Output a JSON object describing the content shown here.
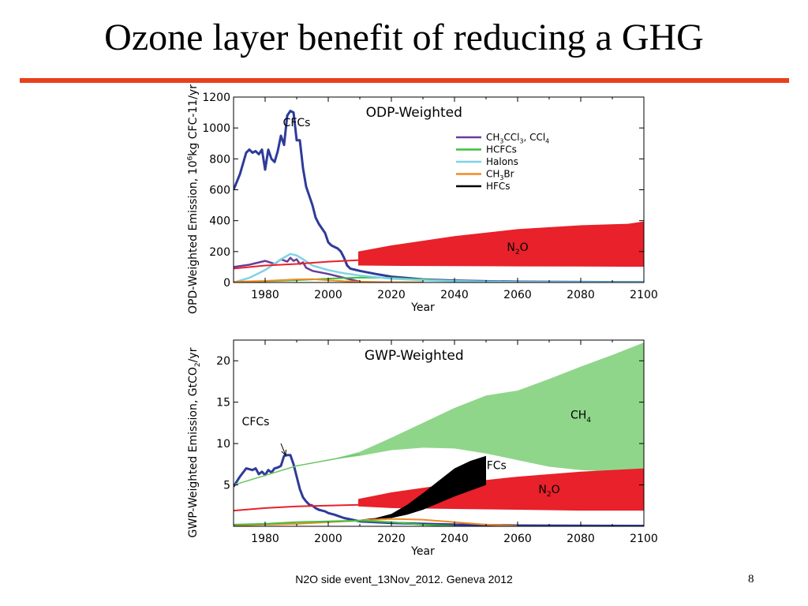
{
  "slide": {
    "title": "Ozone layer benefit of reducing a GHG",
    "footer": "N2O side event_13Nov_2012. Geneva 2012",
    "page_number": "8",
    "accent_color": "#e8401b"
  },
  "chart_data": [
    {
      "type": "line",
      "title": "ODP-Weighted",
      "xlabel": "Year",
      "ylabel": {
        "pre": "OPD-Weighted Emission, 10",
        "sup": "6",
        "post": "kg CFC-11/yr"
      },
      "xlim": [
        1970,
        2100
      ],
      "ylim": [
        0,
        1200
      ],
      "xticks": [
        1980,
        2000,
        2020,
        2040,
        2060,
        2080,
        2100
      ],
      "yticks": [
        0,
        200,
        400,
        600,
        800,
        1000,
        1200
      ],
      "legend": {
        "placement": "top-right",
        "entries": [
          {
            "parts": [
              {
                "t": "CH"
              },
              {
                "t": "3",
                "sub": true
              },
              {
                "t": "CCl"
              },
              {
                "t": "3",
                "sub": true
              },
              {
                "t": ", CCl"
              },
              {
                "t": "4",
                "sub": true
              }
            ],
            "color": "#6a3d9a"
          },
          {
            "parts": [
              {
                "t": "HCFCs"
              }
            ],
            "color": "#3fbf3f"
          },
          {
            "parts": [
              {
                "t": "Halons"
              }
            ],
            "color": "#7fd3e6"
          },
          {
            "parts": [
              {
                "t": "CH"
              },
              {
                "t": "3",
                "sub": true
              },
              {
                "t": "Br"
              }
            ],
            "color": "#f08a24"
          },
          {
            "parts": [
              {
                "t": "HFCs"
              }
            ],
            "color": "#000000"
          }
        ]
      },
      "annotations": [
        {
          "parts": [
            {
              "t": "CFCs"
            }
          ],
          "x": 1990,
          "y": 1010
        },
        {
          "parts": [
            {
              "t": "N"
            },
            {
              "t": "2",
              "sub": true
            },
            {
              "t": "O"
            }
          ],
          "x": 2060,
          "y": 205
        }
      ],
      "bands": [
        {
          "name": "N2O",
          "color": "#e8212a",
          "x": [
            2009.5,
            2020,
            2040,
            2060,
            2080,
            2095,
            2100
          ],
          "low": [
            110,
            108,
            106,
            104,
            103,
            102,
            102
          ],
          "high": [
            200,
            240,
            300,
            345,
            370,
            380,
            395
          ]
        }
      ],
      "series": [
        {
          "name": "CFCs",
          "color": "#2e3b99",
          "width": 3,
          "x": [
            1970,
            1972,
            1974,
            1975,
            1976,
            1977,
            1978,
            1979,
            1980,
            1981,
            1982,
            1983,
            1984,
            1985,
            1986,
            1987,
            1988,
            1989,
            1990,
            1991,
            1992,
            1993,
            1994,
            1995,
            1996,
            1997,
            1998,
            1999,
            2000,
            2001,
            2002,
            2003,
            2004,
            2005,
            2006,
            2007,
            2010,
            2015,
            2020,
            2030,
            2040,
            2050,
            2060,
            2080,
            2100
          ],
          "y": [
            600,
            700,
            840,
            860,
            840,
            850,
            830,
            860,
            730,
            860,
            800,
            780,
            850,
            950,
            890,
            1080,
            1110,
            1100,
            920,
            920,
            740,
            620,
            560,
            500,
            420,
            380,
            350,
            320,
            260,
            240,
            230,
            220,
            200,
            160,
            110,
            90,
            75,
            55,
            38,
            20,
            12,
            8,
            5,
            3,
            2
          ]
        },
        {
          "name": "CH3CCl3, CCl4",
          "color": "#6a3d9a",
          "width": 2.5,
          "x": [
            1970,
            1975,
            1980,
            1983,
            1985,
            1987,
            1988,
            1989,
            1990,
            1991,
            1992,
            1993,
            1995,
            2000,
            2005,
            2010
          ],
          "y": [
            100,
            115,
            140,
            120,
            150,
            135,
            160,
            140,
            150,
            120,
            130,
            95,
            75,
            55,
            30,
            5
          ]
        },
        {
          "name": "HCFCs",
          "color": "#3fbf3f",
          "width": 2,
          "x": [
            1970,
            1980,
            1990,
            2000,
            2010,
            2020,
            2030,
            2040,
            2060,
            2100
          ],
          "y": [
            2,
            8,
            15,
            25,
            32,
            30,
            20,
            10,
            3,
            0
          ]
        },
        {
          "name": "Halons",
          "color": "#7fd3e6",
          "width": 2.5,
          "x": [
            1970,
            1975,
            1980,
            1985,
            1988,
            1990,
            1992,
            1995,
            2000,
            2005,
            2010,
            2020,
            2030,
            2040,
            2060,
            2100
          ],
          "y": [
            0,
            30,
            80,
            150,
            185,
            175,
            150,
            110,
            80,
            60,
            45,
            25,
            15,
            8,
            3,
            1
          ]
        },
        {
          "name": "CH3Br",
          "color": "#f08a24",
          "width": 2,
          "x": [
            1970,
            1980,
            1990,
            1995,
            2000,
            2005,
            2010,
            2020,
            2030
          ],
          "y": [
            5,
            10,
            20,
            22,
            15,
            8,
            5,
            2,
            1
          ]
        },
        {
          "name": "HFCs",
          "color": "#000000",
          "width": 1,
          "x": [
            1970,
            2100
          ],
          "y": [
            0,
            0
          ]
        },
        {
          "name": "N2O",
          "color": "#e8212a",
          "width": 2,
          "x": [
            1970,
            1980,
            1990,
            2000,
            2010
          ],
          "y": [
            90,
            110,
            120,
            135,
            145
          ]
        }
      ]
    },
    {
      "type": "line",
      "title": "GWP-Weighted",
      "xlabel": "Year",
      "ylabel": {
        "pre": "GWP-Weighted Emission, GtCO",
        "sub": "2",
        "post": "/yr"
      },
      "xlim": [
        1970,
        2100
      ],
      "ylim": [
        0,
        22.5
      ],
      "xticks": [
        1980,
        2000,
        2020,
        2040,
        2060,
        2080,
        2100
      ],
      "yticks": [
        5,
        10,
        15,
        20
      ],
      "annotations": [
        {
          "parts": [
            {
              "t": "CFCs"
            }
          ],
          "x": 1977,
          "y": 12.2,
          "arrow": {
            "x1": 1985,
            "y1": 10.0,
            "x2": 1986.5,
            "y2": 8.6
          }
        },
        {
          "parts": [
            {
              "t": "CH"
            },
            {
              "t": "4",
              "sub": true
            }
          ],
          "x": 2080,
          "y": 13.0
        },
        {
          "parts": [
            {
              "t": "HFCs"
            }
          ],
          "x": 2052,
          "y": 6.9
        },
        {
          "parts": [
            {
              "t": "N"
            },
            {
              "t": "2",
              "sub": true
            },
            {
              "t": "O"
            }
          ],
          "x": 2070,
          "y": 4.0
        }
      ],
      "bands": [
        {
          "name": "CH4",
          "color": "#8fd68a",
          "x": [
            1970,
            1980,
            1990,
            2000,
            2010,
            2020,
            2030,
            2040,
            2050,
            2060,
            2070,
            2080,
            2090,
            2100
          ],
          "low": [
            5.0,
            6.2,
            7.3,
            8.0,
            8.5,
            9.2,
            9.5,
            9.4,
            8.8,
            8.0,
            7.2,
            6.8,
            6.6,
            6.5
          ],
          "high": [
            5.0,
            6.2,
            7.3,
            8.0,
            9.0,
            10.7,
            12.5,
            14.3,
            15.8,
            16.4,
            17.8,
            19.3,
            20.7,
            22.2
          ]
        },
        {
          "name": "N2O",
          "color": "#e8212a",
          "x": [
            2009.5,
            2020,
            2040,
            2060,
            2080,
            2100
          ],
          "low": [
            2.4,
            2.2,
            2.1,
            2.0,
            1.9,
            1.9
          ],
          "high": [
            3.3,
            4.1,
            5.2,
            6.0,
            6.6,
            7.0
          ]
        },
        {
          "name": "HFCs",
          "color": "#000000",
          "x": [
            2005,
            2010,
            2015,
            2020,
            2025,
            2030,
            2035,
            2040,
            2045,
            2050
          ],
          "low": [
            0.7,
            0.8,
            0.9,
            1.0,
            1.4,
            2.0,
            2.8,
            3.6,
            4.3,
            5.0
          ],
          "high": [
            0.7,
            0.8,
            1.0,
            1.5,
            2.6,
            4.0,
            5.5,
            7.0,
            7.9,
            8.5
          ]
        }
      ],
      "series": [
        {
          "name": "CFCs",
          "color": "#2e3b99",
          "width": 3,
          "x": [
            1970,
            1972,
            1974,
            1976,
            1977,
            1978,
            1979,
            1980,
            1981,
            1982,
            1983,
            1984,
            1985,
            1986,
            1987,
            1988,
            1989,
            1990,
            1991,
            1992,
            1993,
            1994,
            1995,
            1996,
            1997,
            1998,
            1999,
            2000,
            2002,
            2005,
            2010,
            2015,
            2020,
            2030,
            2040,
            2050,
            2060,
            2100
          ],
          "y": [
            4.8,
            6.0,
            7.0,
            6.8,
            7.0,
            6.3,
            6.6,
            6.2,
            6.8,
            6.5,
            7.0,
            7.1,
            7.3,
            8.5,
            8.6,
            8.6,
            7.5,
            6.0,
            4.5,
            3.5,
            3.0,
            2.6,
            2.5,
            2.2,
            2.0,
            1.9,
            1.8,
            1.6,
            1.4,
            1.0,
            0.6,
            0.5,
            0.4,
            0.3,
            0.2,
            0.15,
            0.1,
            0.05
          ]
        },
        {
          "name": "CH3Br",
          "color": "#f08a24",
          "width": 2,
          "x": [
            1970,
            1980,
            1990,
            2000,
            2010,
            2020,
            2030,
            2040,
            2050,
            2060
          ],
          "y": [
            0.1,
            0.2,
            0.3,
            0.5,
            0.7,
            0.9,
            0.8,
            0.5,
            0.2,
            0.05
          ]
        },
        {
          "name": "HCFCs",
          "color": "#3fbf3f",
          "width": 2,
          "x": [
            1970,
            1980,
            1990,
            2000,
            2010,
            2020,
            2030,
            2040
          ],
          "y": [
            0.2,
            0.3,
            0.5,
            0.6,
            0.7,
            0.5,
            0.2,
            0.05
          ]
        },
        {
          "name": "N2O",
          "color": "#e8212a",
          "width": 2,
          "x": [
            1970,
            1980,
            1990,
            2000,
            2010
          ],
          "y": [
            1.9,
            2.2,
            2.4,
            2.5,
            2.6
          ]
        },
        {
          "name": "CH4",
          "color": "#6cc464",
          "width": 1.5,
          "x": [
            1970,
            1990,
            2010
          ],
          "y": [
            5.0,
            7.3,
            8.7
          ]
        }
      ]
    }
  ]
}
